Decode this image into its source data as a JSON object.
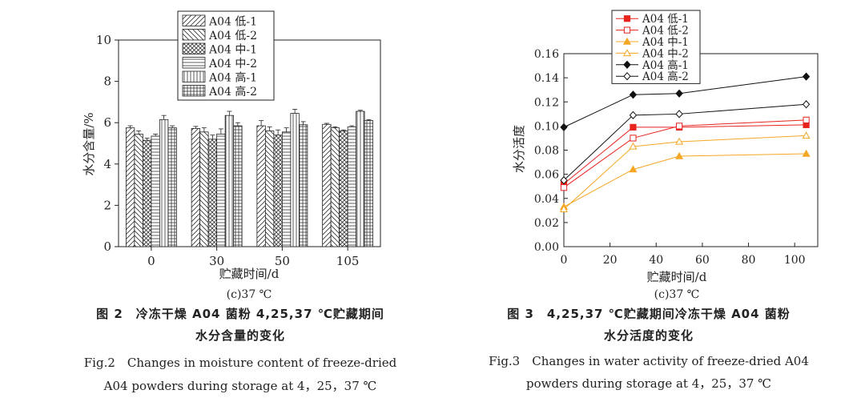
{
  "chart_data": [
    {
      "type": "bar",
      "subcaption": "(c)37 ℃",
      "xlabel": "贮藏时间/d",
      "ylabel": "水分含量/%",
      "ylim": [
        0,
        10
      ],
      "yticks": [
        0,
        2,
        4,
        6,
        8,
        10
      ],
      "categories": [
        "0",
        "30",
        "50",
        "105"
      ],
      "series": [
        {
          "name": "A04 低-1",
          "values": [
            5.75,
            5.72,
            5.85,
            5.92
          ],
          "errors": [
            0.1,
            0.1,
            0.25,
            0.05
          ]
        },
        {
          "name": "A04 低-2",
          "values": [
            5.45,
            5.55,
            5.6,
            5.75
          ],
          "errors": [
            0.15,
            0.2,
            0.2,
            0.05
          ]
        },
        {
          "name": "A04 中-1",
          "values": [
            5.15,
            5.2,
            5.4,
            5.6
          ],
          "errors": [
            0.1,
            0.2,
            0.25,
            0.05
          ]
        },
        {
          "name": "A04 中-2",
          "values": [
            5.35,
            5.45,
            5.55,
            5.8
          ],
          "errors": [
            0.1,
            0.25,
            0.2,
            0.05
          ]
        },
        {
          "name": "A04 高-1",
          "values": [
            6.15,
            6.35,
            6.45,
            6.55
          ],
          "errors": [
            0.2,
            0.2,
            0.2,
            0.05
          ]
        },
        {
          "name": "A04 高-2",
          "values": [
            5.75,
            5.85,
            5.9,
            6.1
          ],
          "errors": [
            0.1,
            0.15,
            0.15,
            0.05
          ]
        }
      ]
    },
    {
      "type": "line",
      "xlabel": "贮藏时间/d",
      "ylabel": "水分活度",
      "xlim": [
        0,
        110
      ],
      "xticks": [
        0,
        20,
        40,
        60,
        80,
        100
      ],
      "ylim": [
        0,
        0.16
      ],
      "yticks": [
        "0.00",
        "0.02",
        "0.04",
        "0.06",
        "0.08",
        "0.10",
        "0.12",
        "0.14",
        "0.16"
      ],
      "x": [
        0,
        30,
        50,
        105
      ],
      "subcaption": "(c)37 ℃",
      "series": [
        {
          "name": "A04 低-1",
          "values": [
            0.052,
            0.099,
            0.099,
            0.101
          ],
          "color": "#e8231d",
          "marker": "square",
          "filled": true
        },
        {
          "name": "A04 低-2",
          "values": [
            0.049,
            0.09,
            0.1,
            0.105
          ],
          "color": "#e8231d",
          "marker": "square",
          "filled": false
        },
        {
          "name": "A04 中-1",
          "values": [
            0.033,
            0.064,
            0.075,
            0.077
          ],
          "color": "#f5a623",
          "marker": "triangle",
          "filled": true
        },
        {
          "name": "A04 中-2",
          "values": [
            0.031,
            0.083,
            0.087,
            0.092
          ],
          "color": "#f5a623",
          "marker": "triangle",
          "filled": false
        },
        {
          "name": "A04 高-1",
          "values": [
            0.099,
            0.126,
            0.127,
            0.141
          ],
          "color": "#111111",
          "marker": "diamond",
          "filled": true
        },
        {
          "name": "A04 高-2",
          "values": [
            0.055,
            0.109,
            0.11,
            0.118
          ],
          "color": "#111111",
          "marker": "diamond",
          "filled": false
        }
      ]
    }
  ],
  "captions": {
    "fig2_title_line1": "图 2　冷冻干燥 A04 菌粉 4,25,37 ℃贮藏期间",
    "fig2_title_line2": "水分含量的变化",
    "fig2_en_line1": "Fig.2　Changes in moisture content of freeze-dried",
    "fig2_en_line2": "A04 powders during storage at 4，25，37 ℃",
    "fig3_title_line1": "图 3　4,25,37 ℃贮藏期间冷冻干燥 A04 菌粉",
    "fig3_title_line2": "水分活度的变化",
    "fig3_en_line1": "Fig.3　Changes in water activity of freeze-dried A04",
    "fig3_en_line2": "powders during storage at 4，25，37 ℃"
  }
}
